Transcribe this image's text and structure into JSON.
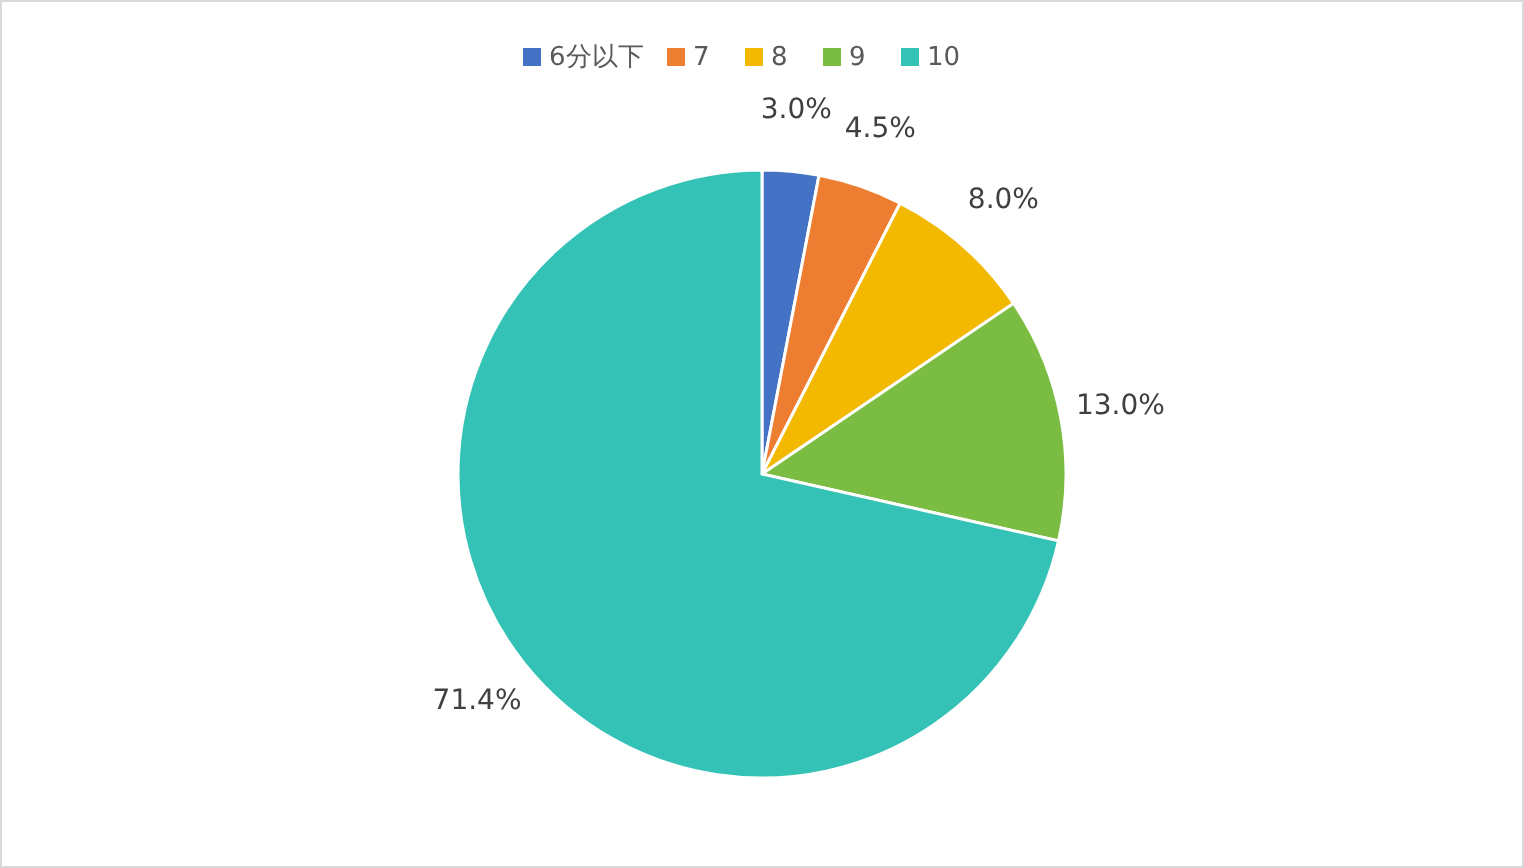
{
  "chart_data": {
    "type": "pie",
    "categories": [
      "6分以下",
      "7",
      "8",
      "9",
      "10"
    ],
    "values": [
      3.0,
      4.5,
      8.0,
      13.0,
      71.4
    ],
    "colors": [
      "#4472c4",
      "#ed7d31",
      "#f2b900",
      "#7bbc43",
      "#33c2b5"
    ],
    "value_labels": [
      "3.0%",
      "4.5%",
      "8.0%",
      "13.0%",
      "71.4%"
    ],
    "legend": "top"
  }
}
